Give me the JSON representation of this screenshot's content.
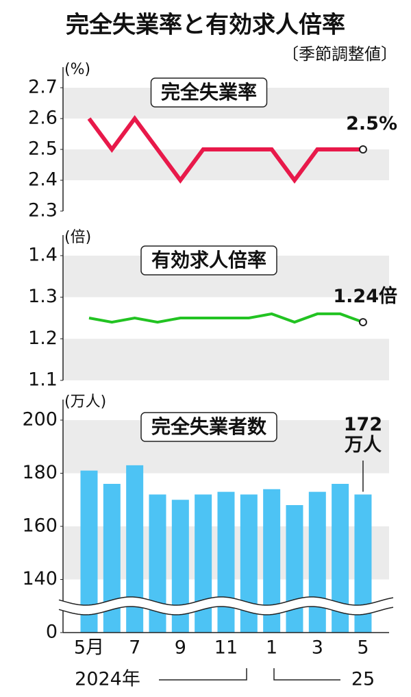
{
  "title": "完全失業率と有効求人倍率",
  "subtitle": "〔季節調整値〕",
  "chart_data": [
    {
      "type": "line",
      "title": "完全失業率",
      "ylabel": "(%)",
      "color": "#e8194a",
      "values": [
        2.6,
        2.5,
        2.6,
        2.5,
        2.4,
        2.5,
        2.5,
        2.5,
        2.5,
        2.4,
        2.5,
        2.5,
        2.5
      ],
      "value_labels": [
        null,
        null,
        null,
        null,
        null,
        null,
        null,
        null,
        null,
        null,
        null,
        null,
        "2.5%"
      ],
      "ylim": [
        2.3,
        2.7
      ],
      "yticks": [
        2.3,
        2.4,
        2.5,
        2.6,
        2.7
      ],
      "bands": true
    },
    {
      "type": "line",
      "title": "有効求人倍率",
      "ylabel": "(倍)",
      "color": "#22c322",
      "values": [
        1.25,
        1.24,
        1.25,
        1.24,
        1.25,
        1.25,
        1.25,
        1.25,
        1.26,
        1.24,
        1.26,
        1.26,
        1.24
      ],
      "value_labels": [
        null,
        null,
        null,
        null,
        null,
        null,
        null,
        null,
        null,
        null,
        null,
        null,
        "1.24倍"
      ],
      "ylim": [
        1.1,
        1.4
      ],
      "yticks": [
        1.1,
        1.2,
        1.3,
        1.4
      ],
      "bands": true
    },
    {
      "type": "bar",
      "title": "完全失業者数",
      "ylabel": "(万人)",
      "color": "#4dc3f4",
      "categories": [
        "5月",
        null,
        "7",
        null,
        "9",
        null,
        "11",
        null,
        "1",
        null,
        "3",
        null,
        "5"
      ],
      "values": [
        181,
        176,
        183,
        172,
        170,
        172,
        173,
        172,
        174,
        168,
        173,
        176,
        172
      ],
      "value_labels": [
        null,
        null,
        null,
        null,
        null,
        null,
        null,
        null,
        null,
        null,
        null,
        null,
        "172\n万人"
      ],
      "ylim": [
        0,
        200
      ],
      "yticks": [
        0,
        140,
        160,
        180,
        200
      ],
      "axis_break": [
        0,
        120
      ],
      "bands": true,
      "x_group_labels": [
        "2024年",
        "25"
      ]
    }
  ]
}
